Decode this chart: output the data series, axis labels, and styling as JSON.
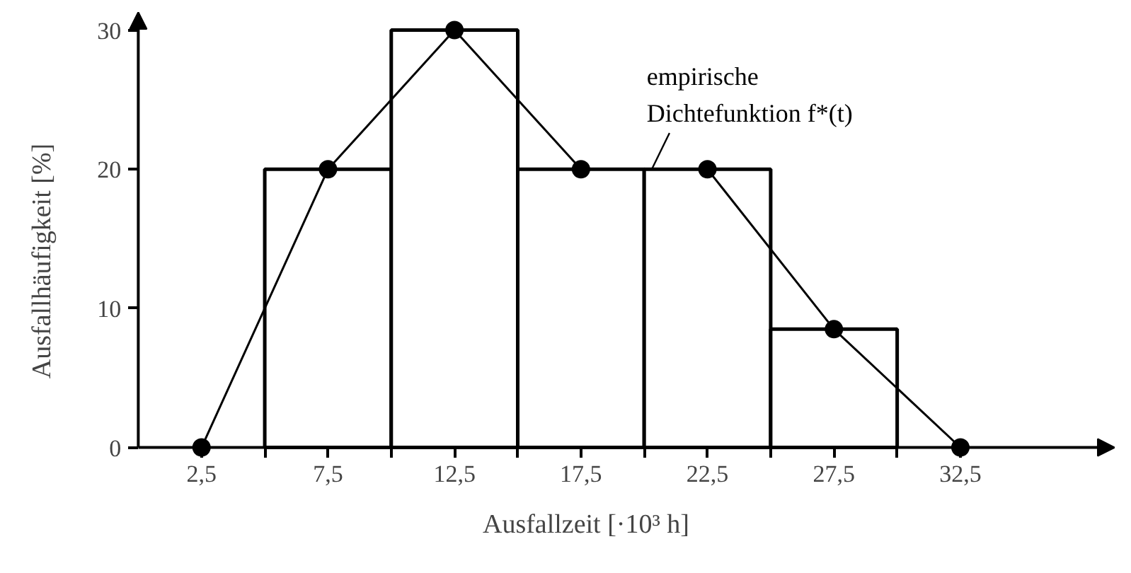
{
  "chart_data": {
    "type": "histogram",
    "xlabel": "Ausfallzeit [·10³ h]",
    "ylabel": "Ausfallhäufigkeit [%]",
    "xlim": [
      0,
      38.6
    ],
    "ylim": [
      0,
      31.3
    ],
    "xticks": [
      {
        "value": 2.5,
        "label": "2,5"
      },
      {
        "value": 7.5,
        "label": "7,5"
      },
      {
        "value": 12.5,
        "label": "12,5"
      },
      {
        "value": 17.5,
        "label": "17,5"
      },
      {
        "value": 22.5,
        "label": "22,5"
      },
      {
        "value": 27.5,
        "label": "27,5"
      },
      {
        "value": 32.5,
        "label": "32,5"
      },
      {
        "value": 5,
        "label": null
      },
      {
        "value": 10,
        "label": null
      },
      {
        "value": 15,
        "label": null
      },
      {
        "value": 20,
        "label": null
      },
      {
        "value": 25,
        "label": null
      },
      {
        "value": 30,
        "label": null
      }
    ],
    "yticks": [
      0,
      10,
      20,
      30
    ],
    "grid": false,
    "series": [
      {
        "type": "histogram",
        "bins": [
          5,
          10,
          15,
          20,
          25,
          30
        ],
        "values": [
          20,
          30,
          20,
          20,
          8.5
        ],
        "color": "#ffffff"
      },
      {
        "type": "line",
        "x": [
          2.5,
          7.5,
          12.5,
          17.5,
          22.5,
          27.5,
          32.5
        ],
        "values": [
          0,
          20,
          30,
          20,
          20,
          8.5,
          0
        ],
        "color": "#000000",
        "marker": "circle"
      }
    ],
    "annotations": [
      {
        "text": "empirische\nDichtefunktion f*(t)",
        "x": 20.3,
        "y": 20
      }
    ]
  }
}
